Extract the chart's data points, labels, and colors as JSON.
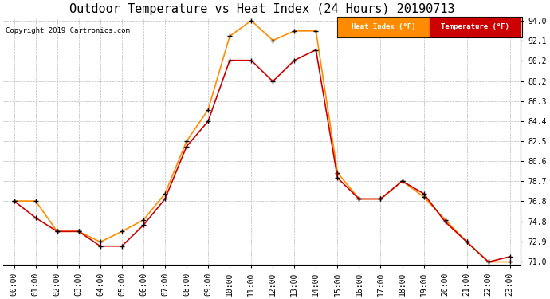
{
  "title": "Outdoor Temperature vs Heat Index (24 Hours) 20190713",
  "copyright": "Copyright 2019 Cartronics.com",
  "hours": [
    "00:00",
    "01:00",
    "02:00",
    "03:00",
    "04:00",
    "05:00",
    "06:00",
    "07:00",
    "08:00",
    "09:00",
    "10:00",
    "11:00",
    "12:00",
    "13:00",
    "14:00",
    "15:00",
    "16:00",
    "17:00",
    "18:00",
    "19:00",
    "20:00",
    "21:00",
    "22:00",
    "23:00"
  ],
  "heat_index": [
    76.8,
    76.8,
    73.9,
    73.9,
    72.9,
    73.9,
    75.0,
    77.5,
    82.5,
    85.5,
    92.5,
    94.0,
    92.1,
    93.0,
    93.0,
    79.5,
    77.0,
    77.0,
    78.7,
    77.2,
    75.0,
    72.9,
    71.0,
    71.0
  ],
  "temperature": [
    76.8,
    75.2,
    73.9,
    73.9,
    72.5,
    72.5,
    74.5,
    77.0,
    82.0,
    84.4,
    90.2,
    90.2,
    88.2,
    90.2,
    91.2,
    79.0,
    77.0,
    77.0,
    78.7,
    77.5,
    74.8,
    72.9,
    71.0,
    71.5
  ],
  "heat_index_color": "#FF8C00",
  "temperature_color": "#CC0000",
  "marker_color": "#000000",
  "background_color": "#FFFFFF",
  "grid_color": "#BBBBBB",
  "yticks": [
    71.0,
    72.9,
    74.8,
    76.8,
    78.7,
    80.6,
    82.5,
    84.4,
    86.3,
    88.2,
    90.2,
    92.1,
    94.0
  ],
  "title_fontsize": 11,
  "tick_fontsize": 7,
  "legend_heat_index_label": "Heat Index (°F)",
  "legend_temperature_label": "Temperature (°F)",
  "legend_heat_index_bg": "#FF8C00",
  "legend_temperature_bg": "#CC0000"
}
